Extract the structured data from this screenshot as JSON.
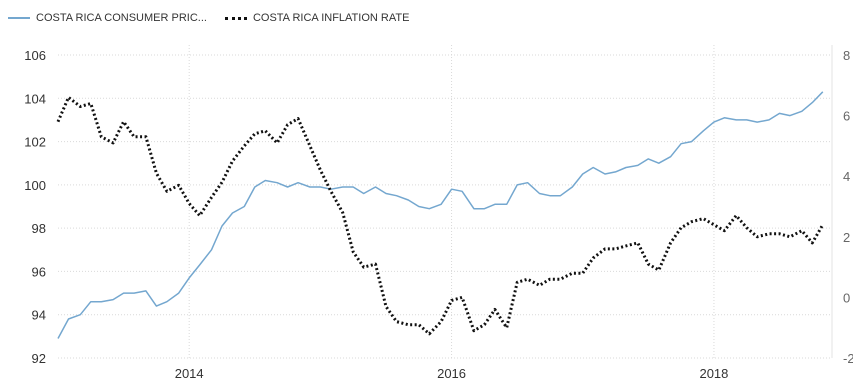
{
  "chart_data": {
    "type": "line",
    "legend": {
      "placement": "top-left",
      "items": [
        {
          "label": "COSTA RICA CONSUMER PRIC...",
          "style": "solid",
          "color": "#74a7cf"
        },
        {
          "label": "COSTA RICA INFLATION RATE",
          "style": "dotted",
          "color": "#111111"
        }
      ]
    },
    "x_ticks": [
      "2014",
      "2016",
      "2018"
    ],
    "x_tick_values": [
      2014,
      2016,
      2018
    ],
    "xlim": [
      2013.0,
      2018.9
    ],
    "left_axis": {
      "ticks": [
        "106",
        "104",
        "102",
        "100",
        "98",
        "96",
        "94",
        "92"
      ],
      "ylim": [
        92,
        106
      ]
    },
    "right_axis": {
      "ticks": [
        "8",
        "6",
        "4",
        "2",
        "0",
        "-2"
      ],
      "ylim": [
        -2,
        8
      ]
    },
    "grid": true,
    "series": [
      {
        "name": "COSTA RICA CONSUMER PRIC...",
        "axis": "left",
        "color": "#74a7cf",
        "style": "solid",
        "x": [
          2013.0,
          2013.08,
          2013.17,
          2013.25,
          2013.33,
          2013.42,
          2013.5,
          2013.58,
          2013.67,
          2013.75,
          2013.83,
          2013.92,
          2014.0,
          2014.08,
          2014.17,
          2014.25,
          2014.33,
          2014.42,
          2014.5,
          2014.58,
          2014.67,
          2014.75,
          2014.83,
          2014.92,
          2015.0,
          2015.08,
          2015.17,
          2015.25,
          2015.33,
          2015.42,
          2015.5,
          2015.58,
          2015.67,
          2015.75,
          2015.83,
          2015.92,
          2016.0,
          2016.08,
          2016.17,
          2016.25,
          2016.33,
          2016.42,
          2016.5,
          2016.58,
          2016.67,
          2016.75,
          2016.83,
          2016.92,
          2017.0,
          2017.08,
          2017.17,
          2017.25,
          2017.33,
          2017.42,
          2017.5,
          2017.58,
          2017.67,
          2017.75,
          2017.83,
          2017.92,
          2018.0,
          2018.08,
          2018.17,
          2018.25,
          2018.33,
          2018.42,
          2018.5,
          2018.58,
          2018.67,
          2018.75,
          2018.83
        ],
        "values": [
          92.9,
          93.8,
          94.0,
          94.6,
          94.6,
          94.7,
          95.0,
          95.0,
          95.1,
          94.4,
          94.6,
          95.0,
          95.7,
          96.3,
          97.0,
          98.1,
          98.7,
          99.0,
          99.9,
          100.2,
          100.1,
          99.9,
          100.1,
          99.9,
          99.9,
          99.8,
          99.9,
          99.9,
          99.6,
          99.9,
          99.6,
          99.5,
          99.3,
          99.0,
          98.9,
          99.1,
          99.8,
          99.7,
          98.9,
          98.9,
          99.1,
          99.1,
          100.0,
          100.1,
          99.6,
          99.5,
          99.5,
          99.9,
          100.5,
          100.8,
          100.5,
          100.6,
          100.8,
          100.9,
          101.2,
          101.0,
          101.3,
          101.9,
          102.0,
          102.5,
          102.9,
          103.1,
          103.0,
          103.0,
          102.9,
          103.0,
          103.3,
          103.2,
          103.4,
          103.8,
          104.3
        ]
      },
      {
        "name": "COSTA RICA INFLATION RATE",
        "axis": "right",
        "color": "#111111",
        "style": "dotted",
        "x": [
          2013.0,
          2013.08,
          2013.17,
          2013.25,
          2013.33,
          2013.42,
          2013.5,
          2013.58,
          2013.67,
          2013.75,
          2013.83,
          2013.92,
          2014.0,
          2014.08,
          2014.17,
          2014.25,
          2014.33,
          2014.42,
          2014.5,
          2014.58,
          2014.67,
          2014.75,
          2014.83,
          2014.92,
          2015.0,
          2015.08,
          2015.17,
          2015.25,
          2015.33,
          2015.42,
          2015.5,
          2015.58,
          2015.67,
          2015.75,
          2015.83,
          2015.92,
          2016.0,
          2016.08,
          2016.17,
          2016.25,
          2016.33,
          2016.42,
          2016.5,
          2016.58,
          2016.67,
          2016.75,
          2016.83,
          2016.92,
          2017.0,
          2017.08,
          2017.17,
          2017.25,
          2017.33,
          2017.42,
          2017.5,
          2017.58,
          2017.67,
          2017.75,
          2017.83,
          2017.92,
          2018.0,
          2018.08,
          2018.17,
          2018.25,
          2018.33,
          2018.42,
          2018.5,
          2018.58,
          2018.67,
          2018.75,
          2018.83
        ],
        "values": [
          5.8,
          6.6,
          6.3,
          6.4,
          5.3,
          5.1,
          5.8,
          5.3,
          5.3,
          4.1,
          3.5,
          3.7,
          3.1,
          2.7,
          3.3,
          3.8,
          4.5,
          5.0,
          5.4,
          5.5,
          5.1,
          5.7,
          5.9,
          5.0,
          4.2,
          3.5,
          2.8,
          1.5,
          1.0,
          1.1,
          -0.3,
          -0.8,
          -0.9,
          -0.9,
          -1.2,
          -0.8,
          -0.1,
          0.0,
          -1.1,
          -0.9,
          -0.4,
          -1.0,
          0.5,
          0.6,
          0.4,
          0.6,
          0.6,
          0.8,
          0.8,
          1.3,
          1.6,
          1.6,
          1.7,
          1.8,
          1.1,
          0.9,
          1.8,
          2.3,
          2.5,
          2.6,
          2.4,
          2.2,
          2.7,
          2.3,
          2.0,
          2.1,
          2.1,
          2.0,
          2.2,
          1.8,
          2.4
        ]
      }
    ]
  }
}
